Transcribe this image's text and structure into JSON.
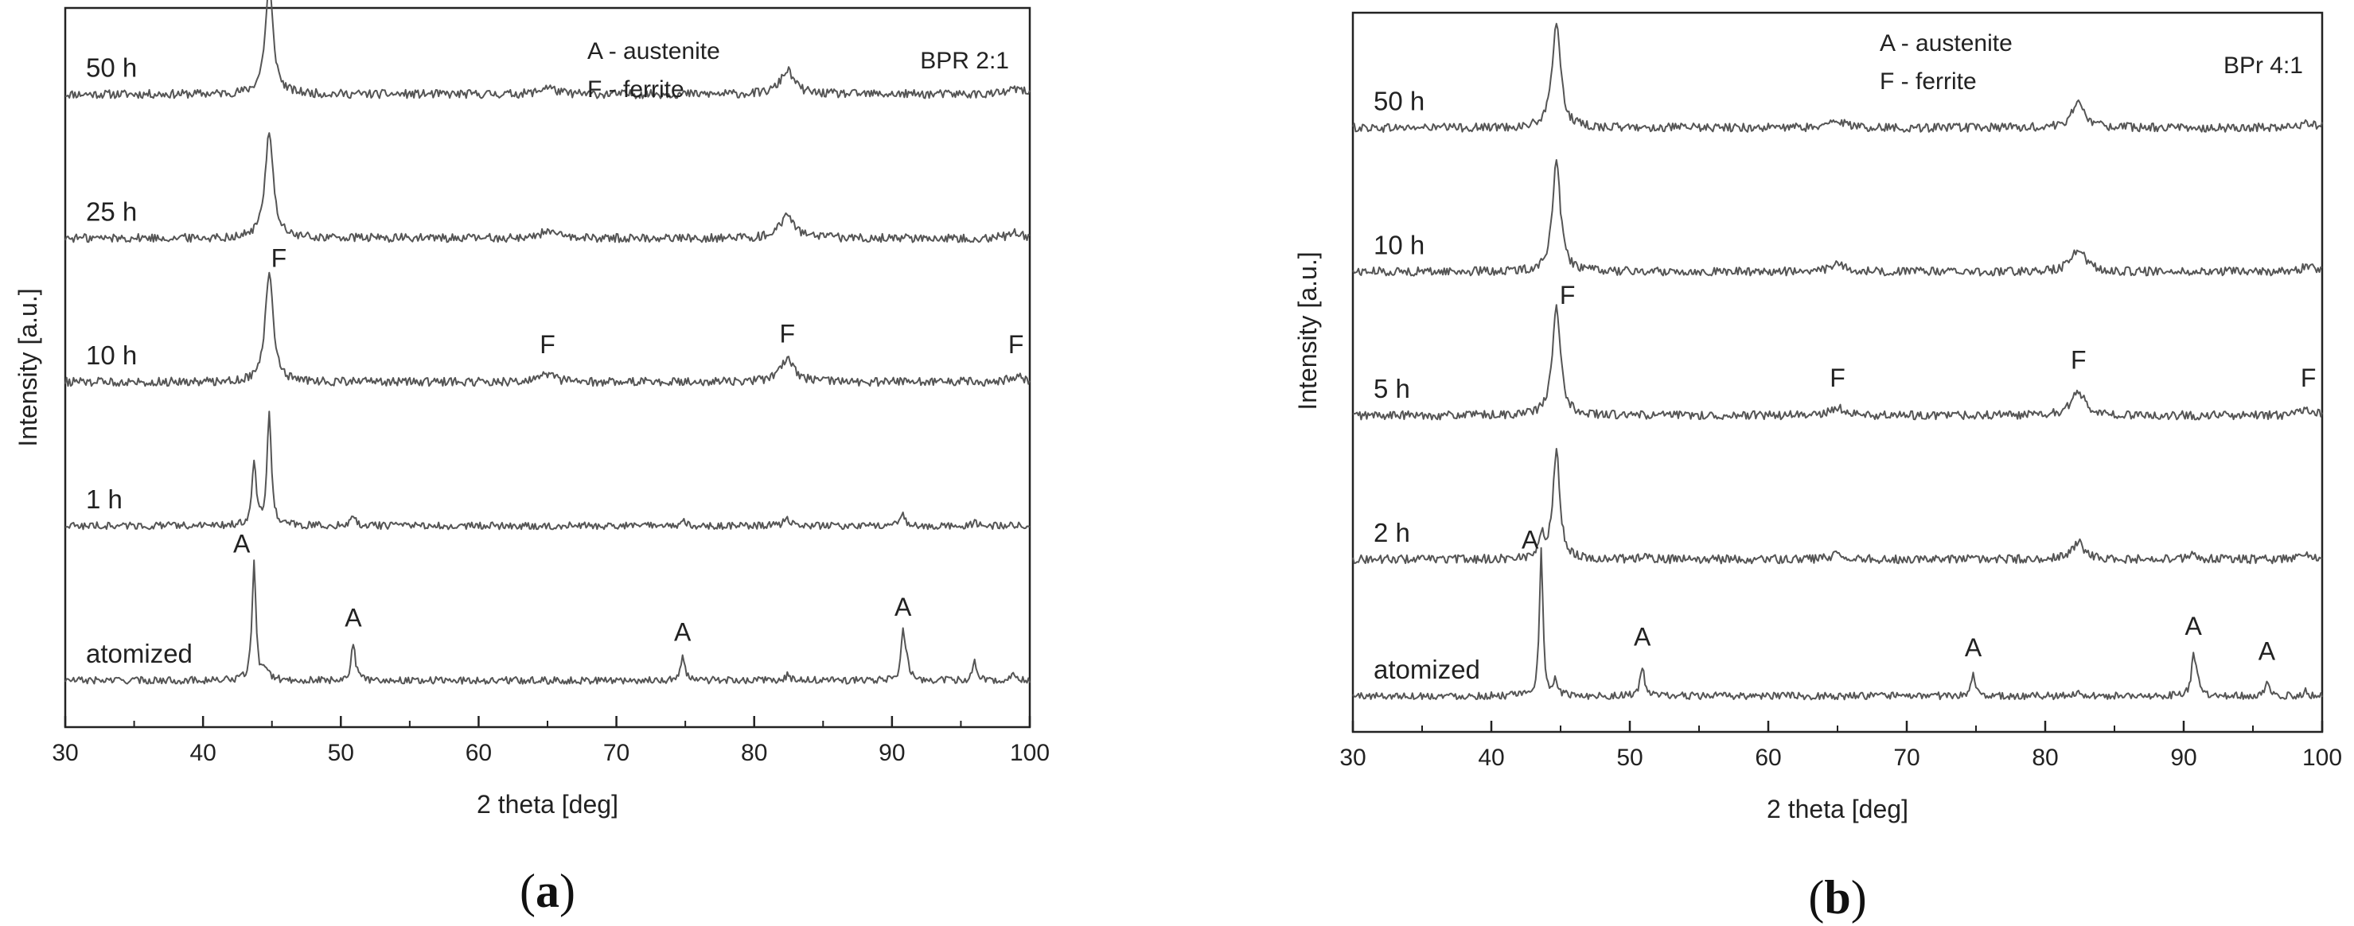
{
  "chart_data": [
    {
      "type": "line",
      "panel": "a",
      "caption_letter": "a",
      "xlabel": "2 theta [deg]",
      "ylabel": "Intensity [a.u.]",
      "xlim": [
        30,
        100
      ],
      "xticks": [
        "30",
        "40",
        "50",
        "60",
        "70",
        "80",
        "90",
        "100"
      ],
      "grid": false,
      "legend_text": [
        "A - austenite",
        "F - ferrite"
      ],
      "tag": "BPR 2:1",
      "series": [
        {
          "name": "50 h",
          "baseline": 0.88,
          "scale": 0.15,
          "noise": 0.006,
          "peaks": [
            [
              44.8,
              1.0,
              0.35
            ],
            [
              65.0,
              0.07,
              0.6
            ],
            [
              82.4,
              0.22,
              0.6
            ],
            [
              99.0,
              0.05,
              0.6
            ]
          ],
          "labels": []
        },
        {
          "name": "25 h",
          "baseline": 0.68,
          "scale": 0.15,
          "noise": 0.006,
          "peaks": [
            [
              44.8,
              1.0,
              0.35
            ],
            [
              65.0,
              0.07,
              0.6
            ],
            [
              82.4,
              0.22,
              0.6
            ],
            [
              99.0,
              0.05,
              0.6
            ]
          ],
          "labels": []
        },
        {
          "name": "10 h",
          "baseline": 0.48,
          "scale": 0.15,
          "noise": 0.006,
          "peaks": [
            [
              44.8,
              1.0,
              0.35
            ],
            [
              65.0,
              0.07,
              0.6
            ],
            [
              82.4,
              0.22,
              0.6
            ],
            [
              99.0,
              0.05,
              0.6
            ]
          ],
          "labels": [
            {
              "text": "F",
              "x": 45.5,
              "dy": 0.16
            },
            {
              "text": "F",
              "x": 65.0,
              "dy": 0.04
            },
            {
              "text": "F",
              "x": 82.4,
              "dy": 0.055
            },
            {
              "text": "F",
              "x": 99.0,
              "dy": 0.04
            }
          ]
        },
        {
          "name": "1 h",
          "baseline": 0.28,
          "scale": 0.16,
          "noise": 0.005,
          "peaks": [
            [
              43.7,
              0.55,
              0.18
            ],
            [
              44.8,
              1.0,
              0.18
            ],
            [
              50.9,
              0.1,
              0.2
            ],
            [
              74.8,
              0.05,
              0.2
            ],
            [
              82.4,
              0.06,
              0.3
            ],
            [
              90.8,
              0.09,
              0.2
            ],
            [
              96.0,
              0.03,
              0.2
            ]
          ],
          "labels": []
        },
        {
          "name": "atomized",
          "baseline": 0.065,
          "scale": 0.17,
          "noise": 0.005,
          "peaks": [
            [
              43.7,
              1.0,
              0.16
            ],
            [
              44.6,
              0.1,
              0.2
            ],
            [
              50.9,
              0.3,
              0.18
            ],
            [
              74.8,
              0.2,
              0.18
            ],
            [
              82.4,
              0.04,
              0.2
            ],
            [
              90.8,
              0.38,
              0.16
            ],
            [
              91.1,
              0.12,
              0.2
            ],
            [
              96.0,
              0.17,
              0.15
            ],
            [
              98.8,
              0.07,
              0.15
            ]
          ],
          "labels": [
            {
              "text": "A",
              "x": 42.8,
              "dy": 0.178
            },
            {
              "text": "A",
              "x": 50.9,
              "dy": 0.075
            },
            {
              "text": "A",
              "x": 74.8,
              "dy": 0.055
            },
            {
              "text": "A",
              "x": 90.8,
              "dy": 0.09
            }
          ]
        }
      ]
    },
    {
      "type": "line",
      "panel": "b",
      "caption_letter": "b",
      "xlabel": "2 theta [deg]",
      "ylabel": "Intensity [a.u.]",
      "xlim": [
        30,
        100
      ],
      "xticks": [
        "30",
        "40",
        "50",
        "60",
        "70",
        "80",
        "90",
        "100"
      ],
      "grid": false,
      "legend_text": [
        "A - austenite",
        "F - ferrite"
      ],
      "tag": "BPr 4:1",
      "series": [
        {
          "name": "50 h",
          "baseline": 0.84,
          "scale": 0.15,
          "noise": 0.006,
          "peaks": [
            [
              44.7,
              1.0,
              0.35
            ],
            [
              65.0,
              0.07,
              0.6
            ],
            [
              82.4,
              0.22,
              0.6
            ],
            [
              99.0,
              0.05,
              0.6
            ]
          ],
          "labels": []
        },
        {
          "name": "10 h",
          "baseline": 0.64,
          "scale": 0.15,
          "noise": 0.006,
          "peaks": [
            [
              44.7,
              1.0,
              0.35
            ],
            [
              65.0,
              0.07,
              0.6
            ],
            [
              82.4,
              0.22,
              0.6
            ],
            [
              99.0,
              0.05,
              0.6
            ]
          ],
          "labels": []
        },
        {
          "name": "5 h",
          "baseline": 0.44,
          "scale": 0.15,
          "noise": 0.006,
          "peaks": [
            [
              44.7,
              1.0,
              0.35
            ],
            [
              65.0,
              0.07,
              0.6
            ],
            [
              82.4,
              0.22,
              0.6
            ],
            [
              99.0,
              0.05,
              0.6
            ]
          ],
          "labels": [
            {
              "text": "F",
              "x": 45.5,
              "dy": 0.155
            },
            {
              "text": "F",
              "x": 65.0,
              "dy": 0.04
            },
            {
              "text": "F",
              "x": 82.4,
              "dy": 0.065
            },
            {
              "text": "F",
              "x": 99.0,
              "dy": 0.04
            }
          ]
        },
        {
          "name": "2 h",
          "baseline": 0.24,
          "scale": 0.15,
          "noise": 0.006,
          "peaks": [
            [
              43.6,
              0.2,
              0.25
            ],
            [
              44.7,
              1.0,
              0.3
            ],
            [
              50.9,
              0.03,
              0.3
            ],
            [
              65.0,
              0.05,
              0.5
            ],
            [
              82.4,
              0.16,
              0.5
            ],
            [
              90.7,
              0.04,
              0.4
            ],
            [
              99.0,
              0.03,
              0.5
            ]
          ],
          "labels": []
        },
        {
          "name": "atomized",
          "baseline": 0.05,
          "scale": 0.2,
          "noise": 0.005,
          "peaks": [
            [
              43.6,
              1.0,
              0.15
            ],
            [
              44.6,
              0.1,
              0.2
            ],
            [
              50.9,
              0.2,
              0.18
            ],
            [
              74.8,
              0.14,
              0.18
            ],
            [
              82.4,
              0.03,
              0.2
            ],
            [
              90.7,
              0.26,
              0.16
            ],
            [
              91.0,
              0.12,
              0.2
            ],
            [
              96.0,
              0.12,
              0.15
            ],
            [
              98.8,
              0.05,
              0.15
            ]
          ],
          "labels": [
            {
              "text": "A",
              "x": 42.8,
              "dy": 0.205
            },
            {
              "text": "A",
              "x": 50.9,
              "dy": 0.07
            },
            {
              "text": "A",
              "x": 74.8,
              "dy": 0.055
            },
            {
              "text": "A",
              "x": 90.7,
              "dy": 0.085
            },
            {
              "text": "A",
              "x": 96.0,
              "dy": 0.05
            }
          ]
        }
      ]
    }
  ]
}
